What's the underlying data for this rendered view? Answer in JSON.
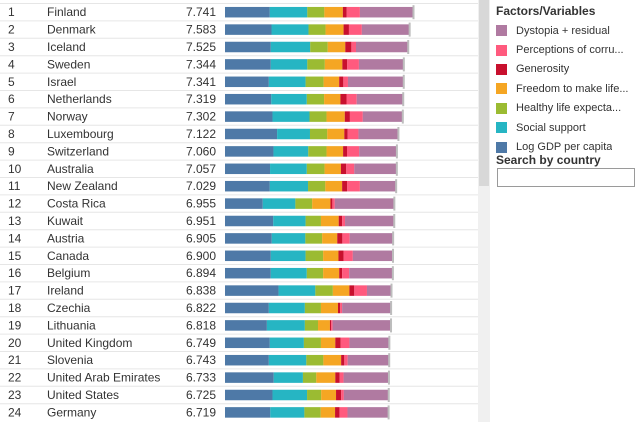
{
  "legend": {
    "title": "Factors/Variables",
    "items": [
      {
        "label": "Dystopia + residual",
        "color": "#b07aa1"
      },
      {
        "label": "Perceptions of corru...",
        "color": "#ff5a7e"
      },
      {
        "label": "Generosity",
        "color": "#c8102e"
      },
      {
        "label": "Freedom to make life...",
        "color": "#f5a623"
      },
      {
        "label": "Healthy life expecta...",
        "color": "#9bbb32"
      },
      {
        "label": "Social support",
        "color": "#26b5c3"
      },
      {
        "label": "Log GDP per capita",
        "color": "#4e79a7"
      }
    ]
  },
  "search": {
    "title": "Search by country",
    "value": ""
  },
  "chart_data": {
    "type": "bar",
    "stacked": true,
    "orientation": "horizontal",
    "title": "",
    "xlim": [
      0,
      8
    ],
    "series_order": [
      "Log GDP per capita",
      "Social support",
      "Healthy life expecta...",
      "Freedom to make life...",
      "Generosity",
      "Perceptions of corru...",
      "Dystopia + residual"
    ],
    "rows": [
      {
        "rank": "1",
        "country": "Finland",
        "score": "7.741",
        "segments": [
          1.84,
          1.54,
          0.7,
          0.76,
          0.16,
          0.54,
          2.2
        ]
      },
      {
        "rank": "2",
        "country": "Denmark",
        "score": "7.583",
        "segments": [
          1.91,
          1.52,
          0.7,
          0.74,
          0.22,
          0.53,
          1.96
        ]
      },
      {
        "rank": "3",
        "country": "Iceland",
        "score": "7.525",
        "segments": [
          1.88,
          1.62,
          0.72,
          0.72,
          0.25,
          0.19,
          2.14
        ]
      },
      {
        "rank": "4",
        "country": "Sweden",
        "score": "7.344",
        "segments": [
          1.88,
          1.5,
          0.72,
          0.72,
          0.2,
          0.48,
          1.84
        ]
      },
      {
        "rank": "5",
        "country": "Israel",
        "score": "7.341",
        "segments": [
          1.8,
          1.51,
          0.74,
          0.64,
          0.17,
          0.19,
          2.3
        ]
      },
      {
        "rank": "6",
        "country": "Netherlands",
        "score": "7.319",
        "segments": [
          1.9,
          1.46,
          0.71,
          0.67,
          0.25,
          0.42,
          1.92
        ]
      },
      {
        "rank": "7",
        "country": "Norway",
        "score": "7.302",
        "segments": [
          1.95,
          1.52,
          0.7,
          0.75,
          0.21,
          0.53,
          1.64
        ]
      },
      {
        "rank": "8",
        "country": "Luxembourg",
        "score": "7.122",
        "segments": [
          2.14,
          1.35,
          0.71,
          0.7,
          0.14,
          0.44,
          1.64
        ]
      },
      {
        "rank": "9",
        "country": "Switzerland",
        "score": "7.060",
        "segments": [
          1.99,
          1.43,
          0.75,
          0.68,
          0.16,
          0.5,
          1.56
        ]
      },
      {
        "rank": "10",
        "country": "Australia",
        "score": "7.057",
        "segments": [
          1.85,
          1.51,
          0.73,
          0.67,
          0.22,
          0.33,
          1.75
        ]
      },
      {
        "rank": "11",
        "country": "New Zealand",
        "score": "7.029",
        "segments": [
          1.84,
          1.57,
          0.71,
          0.69,
          0.21,
          0.52,
          1.5
        ]
      },
      {
        "rank": "12",
        "country": "Costa Rica",
        "score": "6.955",
        "segments": [
          1.55,
          1.34,
          0.69,
          0.75,
          0.08,
          0.1,
          2.45
        ]
      },
      {
        "rank": "13",
        "country": "Kuwait",
        "score": "6.951",
        "segments": [
          1.98,
          1.33,
          0.63,
          0.73,
          0.14,
          0.12,
          2.02
        ]
      },
      {
        "rank": "14",
        "country": "Austria",
        "score": "6.905",
        "segments": [
          1.92,
          1.38,
          0.69,
          0.62,
          0.21,
          0.3,
          1.78
        ]
      },
      {
        "rank": "15",
        "country": "Canada",
        "score": "6.900",
        "segments": [
          1.88,
          1.43,
          0.72,
          0.63,
          0.21,
          0.38,
          1.64
        ]
      },
      {
        "rank": "16",
        "country": "Belgium",
        "score": "6.894",
        "segments": [
          1.88,
          1.48,
          0.67,
          0.66,
          0.12,
          0.29,
          1.78
        ]
      },
      {
        "rank": "17",
        "country": "Ireland",
        "score": "6.838",
        "segments": [
          2.2,
          1.51,
          0.72,
          0.68,
          0.2,
          0.52,
          1.0
        ]
      },
      {
        "rank": "18",
        "country": "Czechia",
        "score": "6.822",
        "segments": [
          1.8,
          1.48,
          0.66,
          0.7,
          0.09,
          0.08,
          2.01
        ]
      },
      {
        "rank": "19",
        "country": "Lithuania",
        "score": "6.818",
        "segments": [
          1.72,
          1.56,
          0.54,
          0.49,
          0.05,
          0.06,
          2.4
        ]
      },
      {
        "rank": "20",
        "country": "United Kingdom",
        "score": "6.749",
        "segments": [
          1.84,
          1.4,
          0.7,
          0.59,
          0.22,
          0.36,
          1.64
        ]
      },
      {
        "rank": "21",
        "country": "Slovenia",
        "score": "6.743",
        "segments": [
          1.8,
          1.54,
          0.7,
          0.73,
          0.13,
          0.14,
          1.7
        ]
      },
      {
        "rank": "22",
        "country": "United Arab Emirates",
        "score": "6.733",
        "segments": [
          2.0,
          1.2,
          0.55,
          0.78,
          0.18,
          0.16,
          1.86
        ]
      },
      {
        "rank": "23",
        "country": "United States",
        "score": "6.725",
        "segments": [
          1.95,
          1.42,
          0.58,
          0.61,
          0.21,
          0.11,
          1.85
        ]
      },
      {
        "rank": "24",
        "country": "Germany",
        "score": "6.719",
        "segments": [
          1.86,
          1.4,
          0.67,
          0.59,
          0.18,
          0.33,
          1.69
        ]
      }
    ]
  }
}
